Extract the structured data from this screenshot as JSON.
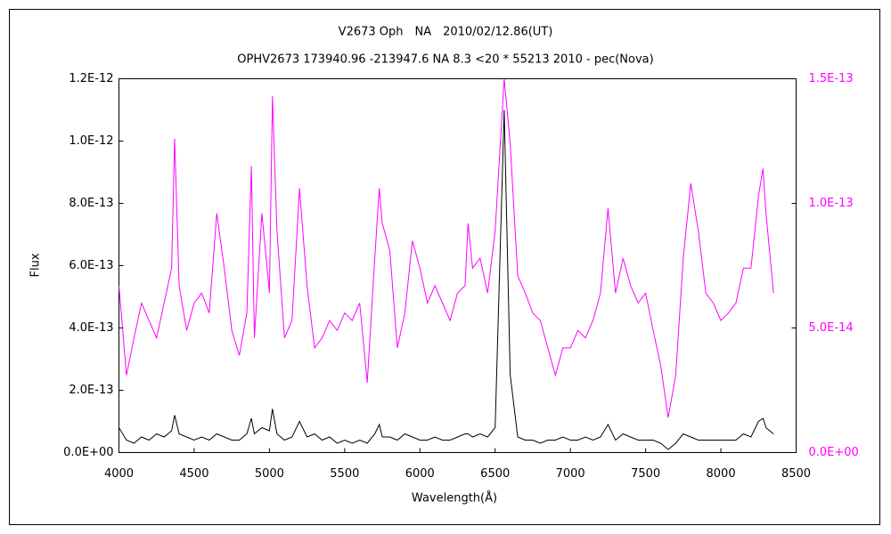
{
  "chart_data": {
    "type": "line",
    "title": "V2673 Oph　NA　2010/02/12.86(UT)",
    "subtitle": "OPHV2673 173940.96 -213947.6 NA 8.3 <20 * 55213 2010 - pec(Nova)",
    "x_label": "Wavelength(Å)",
    "y_label": "Flux",
    "x": [
      4000,
      4050,
      4100,
      4150,
      4200,
      4250,
      4300,
      4350,
      4370,
      4400,
      4450,
      4500,
      4550,
      4600,
      4650,
      4700,
      4750,
      4800,
      4850,
      4880,
      4900,
      4950,
      5000,
      5020,
      5050,
      5100,
      5150,
      5200,
      5250,
      5300,
      5350,
      5400,
      5450,
      5500,
      5550,
      5600,
      5650,
      5700,
      5730,
      5750,
      5800,
      5850,
      5900,
      5950,
      6000,
      6050,
      6100,
      6150,
      6200,
      6250,
      6300,
      6320,
      6350,
      6400,
      6450,
      6500,
      6560,
      6600,
      6650,
      6700,
      6750,
      6800,
      6850,
      6900,
      6950,
      7000,
      7050,
      7100,
      7150,
      7200,
      7250,
      7300,
      7350,
      7400,
      7450,
      7500,
      7550,
      7600,
      7650,
      7700,
      7750,
      7800,
      7850,
      7900,
      7950,
      8000,
      8050,
      8100,
      8150,
      8200,
      8250,
      8280,
      8300,
      8350
    ],
    "series": [
      {
        "color": "#000000",
        "values": [
          8e-14,
          4e-14,
          3e-14,
          5e-14,
          4e-14,
          6e-14,
          5e-14,
          7e-14,
          1.2e-13,
          6e-14,
          5e-14,
          4e-14,
          5e-14,
          4e-14,
          6e-14,
          5e-14,
          4e-14,
          4e-14,
          6e-14,
          1.1e-13,
          6e-14,
          8e-14,
          7e-14,
          1.4e-13,
          6e-14,
          4e-14,
          5e-14,
          1e-13,
          5e-14,
          6e-14,
          4e-14,
          5e-14,
          3e-14,
          4e-14,
          3e-14,
          4e-14,
          3e-14,
          6e-14,
          9e-14,
          5e-14,
          5e-14,
          4e-14,
          6e-14,
          5e-14,
          4e-14,
          4e-14,
          5e-14,
          4e-14,
          4e-14,
          5e-14,
          6e-14,
          6e-14,
          5e-14,
          6e-14,
          5e-14,
          8e-14,
          1.1e-12,
          2.5e-13,
          5e-14,
          4e-14,
          4e-14,
          3e-14,
          4e-14,
          4e-14,
          5e-14,
          4e-14,
          4e-14,
          5e-14,
          4e-14,
          5e-14,
          9e-14,
          4e-14,
          6e-14,
          5e-14,
          4e-14,
          4e-14,
          4e-14,
          3e-14,
          1e-14,
          3e-14,
          6e-14,
          5e-14,
          4e-14,
          4e-14,
          4e-14,
          4e-14,
          4e-14,
          4e-14,
          6e-14,
          5e-14,
          1e-13,
          1.1e-13,
          8e-14,
          6e-14
        ]
      },
      {
        "color": "#ff00ff",
        "axis": "y2",
        "values": [
          6.7e-14,
          3.1e-14,
          4.6e-14,
          6e-14,
          5.3e-14,
          4.6e-14,
          6e-14,
          7.4e-14,
          1.26e-13,
          6.7e-14,
          4.9e-14,
          6e-14,
          6.4e-14,
          5.6e-14,
          9.6e-14,
          7.4e-14,
          4.9e-14,
          3.9e-14,
          5.6e-14,
          1.15e-13,
          4.6e-14,
          9.6e-14,
          6.4e-14,
          1.43e-13,
          8.9e-14,
          4.6e-14,
          5.3e-14,
          1.06e-13,
          6.7e-14,
          4.2e-14,
          4.6e-14,
          5.3e-14,
          4.9e-14,
          5.6e-14,
          5.3e-14,
          6e-14,
          2.8e-14,
          7.8e-14,
          1.06e-13,
          9.2e-14,
          8.1e-14,
          4.2e-14,
          5.6e-14,
          8.5e-14,
          7.4e-14,
          6e-14,
          6.7e-14,
          6e-14,
          5.3e-14,
          6.4e-14,
          6.7e-14,
          9.2e-14,
          7.4e-14,
          7.8e-14,
          6.4e-14,
          8.9e-14,
          1.5e-13,
          1.24e-13,
          7.1e-14,
          6.4e-14,
          5.6e-14,
          5.3e-14,
          4.2e-14,
          3.1e-14,
          4.2e-14,
          4.2e-14,
          4.9e-14,
          4.6e-14,
          5.3e-14,
          6.4e-14,
          9.8e-14,
          6.4e-14,
          7.8e-14,
          6.7e-14,
          6e-14,
          6.4e-14,
          4.9e-14,
          3.5e-14,
          1.4e-14,
          3.1e-14,
          7.8e-14,
          1.08e-13,
          8.9e-14,
          6.4e-14,
          6e-14,
          5.3e-14,
          5.6e-14,
          6e-14,
          7.4e-14,
          7.4e-14,
          1.03e-13,
          1.14e-13,
          9.6e-14,
          6.4e-14
        ]
      }
    ],
    "xlim": [
      4000,
      8500
    ],
    "xticks": [
      4000,
      4500,
      5000,
      5500,
      6000,
      6500,
      7000,
      7500,
      8000,
      8500
    ],
    "ylim": [
      0,
      1.2e-12
    ],
    "yticks": [
      {
        "value": 0,
        "label": "0.0E+00"
      },
      {
        "value": 2e-13,
        "label": "2.0E-13"
      },
      {
        "value": 4e-13,
        "label": "4.0E-13"
      },
      {
        "value": 6e-13,
        "label": "6.0E-13"
      },
      {
        "value": 8e-13,
        "label": "8.0E-13"
      },
      {
        "value": 1e-12,
        "label": "1.0E-12"
      },
      {
        "value": 1.2e-12,
        "label": "1.2E-12"
      }
    ],
    "y2lim": [
      0,
      1.5e-13
    ],
    "y2ticks": [
      {
        "value": 0,
        "label": "0.0E+00"
      },
      {
        "value": 5e-14,
        "label": "5.0E-14"
      },
      {
        "value": 1e-13,
        "label": "1.0E-13"
      },
      {
        "value": 1.5e-13,
        "label": "1.5E-13"
      }
    ],
    "y2_color": "#ff00ff"
  }
}
